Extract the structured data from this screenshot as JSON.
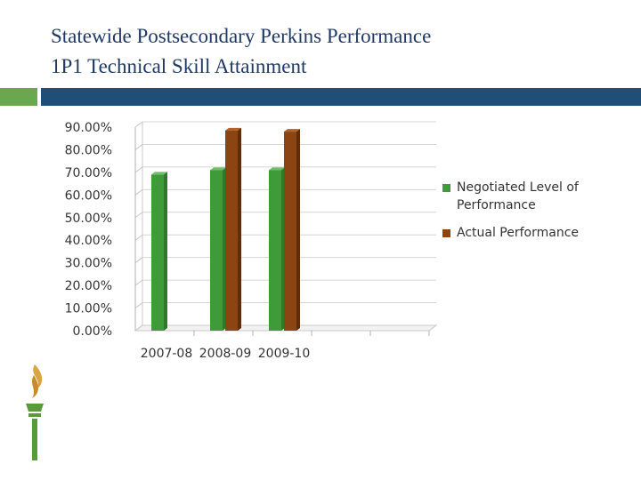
{
  "slide": {
    "title_line1": "Statewide Postsecondary Perkins Performance",
    "title_line2": "1P1 Technical Skill Attainment"
  },
  "colors": {
    "title": "#1f3864",
    "accent_green": "#6aa84f",
    "accent_blue": "#1f4e79",
    "series_negotiated": "#3f9a3a",
    "series_actual": "#8b4513"
  },
  "chart_data": {
    "type": "bar",
    "categories": [
      "2007-08",
      "2008-09",
      "2009-10"
    ],
    "series": [
      {
        "name": "Negotiated Level of Performance",
        "values": [
          69.0,
          71.0,
          71.0
        ],
        "color": "#3f9a3a"
      },
      {
        "name": "Actual Performance",
        "values": [
          null,
          88.5,
          88.0
        ],
        "color": "#8b4513"
      }
    ],
    "y_ticks": [
      "0.00%",
      "10.00%",
      "20.00%",
      "30.00%",
      "40.00%",
      "50.00%",
      "60.00%",
      "70.00%",
      "80.00%",
      "90.00%"
    ],
    "ylim": [
      0,
      90
    ],
    "grid": true,
    "legend_position": "right",
    "legend": [
      "Negotiated Level of Performance",
      "Actual Performance"
    ],
    "title": "",
    "xlabel": "",
    "ylabel": ""
  }
}
